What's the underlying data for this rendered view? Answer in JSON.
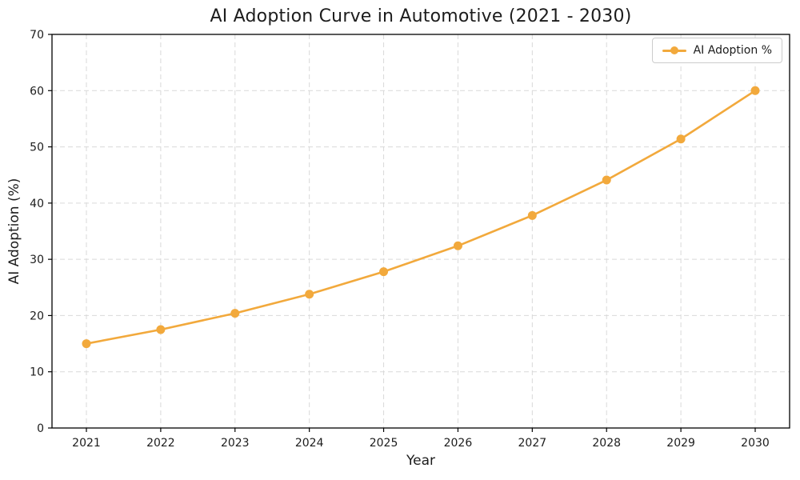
{
  "figure": {
    "title": "AI Adoption Curve in Automotive (2021 - 2030)",
    "xlabel": "Year",
    "ylabel": "AI Adoption (%)"
  },
  "legend": {
    "label": "AI Adoption %",
    "position": "upper right"
  },
  "colors": {
    "line": "#F2A93C",
    "marker": "#F2A93C",
    "grid": "#D9D9D9",
    "spine": "#000000",
    "text": "#1C1C1C",
    "legend_border": "#CCCCCC",
    "background": "#FFFFFF"
  },
  "chart_data": {
    "type": "line",
    "title": "AI Adoption Curve in Automotive (2021 - 2030)",
    "xlabel": "Year",
    "ylabel": "AI Adoption (%)",
    "categories": [
      "2021",
      "2022",
      "2023",
      "2024",
      "2025",
      "2026",
      "2027",
      "2028",
      "2029",
      "2030"
    ],
    "series": [
      {
        "name": "AI Adoption %",
        "values": [
          15.0,
          17.5,
          20.4,
          23.8,
          27.8,
          32.4,
          37.8,
          44.1,
          51.4,
          60.0
        ]
      }
    ],
    "ylim": [
      0,
      70
    ],
    "yticks": [
      0,
      10,
      20,
      30,
      40,
      50,
      60,
      70
    ],
    "grid": true,
    "grid_style": "dashed",
    "legend_position": "upper right",
    "marker": "circle"
  }
}
